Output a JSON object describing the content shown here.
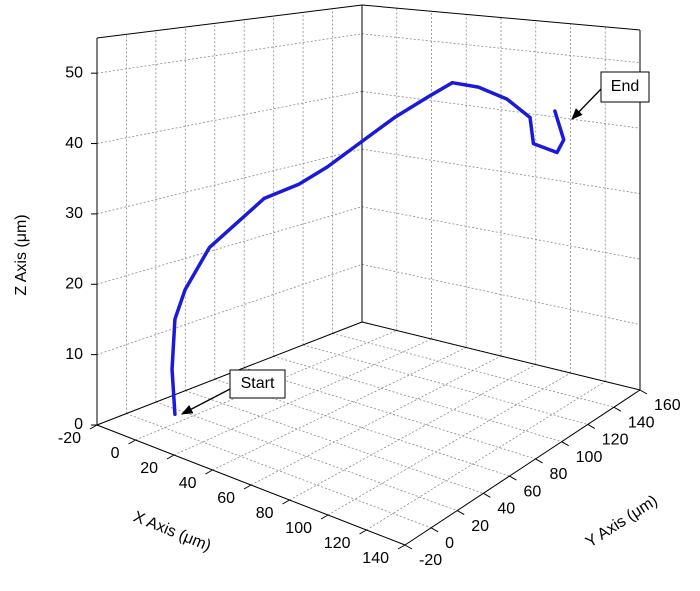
{
  "chart_data": {
    "type": "line3d",
    "xlabel": "X Axis (μm)",
    "ylabel": "Y Axis (μm)",
    "zlabel": "Z Axis (μm)",
    "xlim": [
      -20,
      140
    ],
    "ylim": [
      -20,
      160
    ],
    "zlim": [
      0,
      55
    ],
    "xticks": [
      -20,
      0,
      20,
      40,
      60,
      80,
      100,
      120,
      140
    ],
    "yticks": [
      -20,
      0,
      20,
      40,
      60,
      80,
      100,
      120,
      140,
      160
    ],
    "zticks": [
      0,
      10,
      20,
      30,
      40,
      50
    ],
    "grid": true,
    "series": [
      {
        "color": "#1a1ad8",
        "x": [
          10,
          10,
          10,
          10,
          10,
          10,
          10,
          10,
          20,
          30,
          40,
          50,
          60,
          70,
          80,
          90,
          95,
          100,
          100,
          98
        ],
        "y": [
          -6,
          -8,
          -6,
          1,
          18,
          39,
          56,
          80,
          87,
          98,
          109,
          120,
          125,
          131,
          139,
          143,
          139,
          150,
          155,
          151
        ],
        "z": [
          3.5,
          10.1,
          17.1,
          20.8,
          25.8,
          28.4,
          30.6,
          31.2,
          34.1,
          37.9,
          41.6,
          44.6,
          47.0,
          46.3,
          44.2,
          41.4,
          37.9,
          35.7,
          37.2,
          42.0
        ]
      }
    ],
    "annotations": [
      "Start",
      "End"
    ]
  }
}
